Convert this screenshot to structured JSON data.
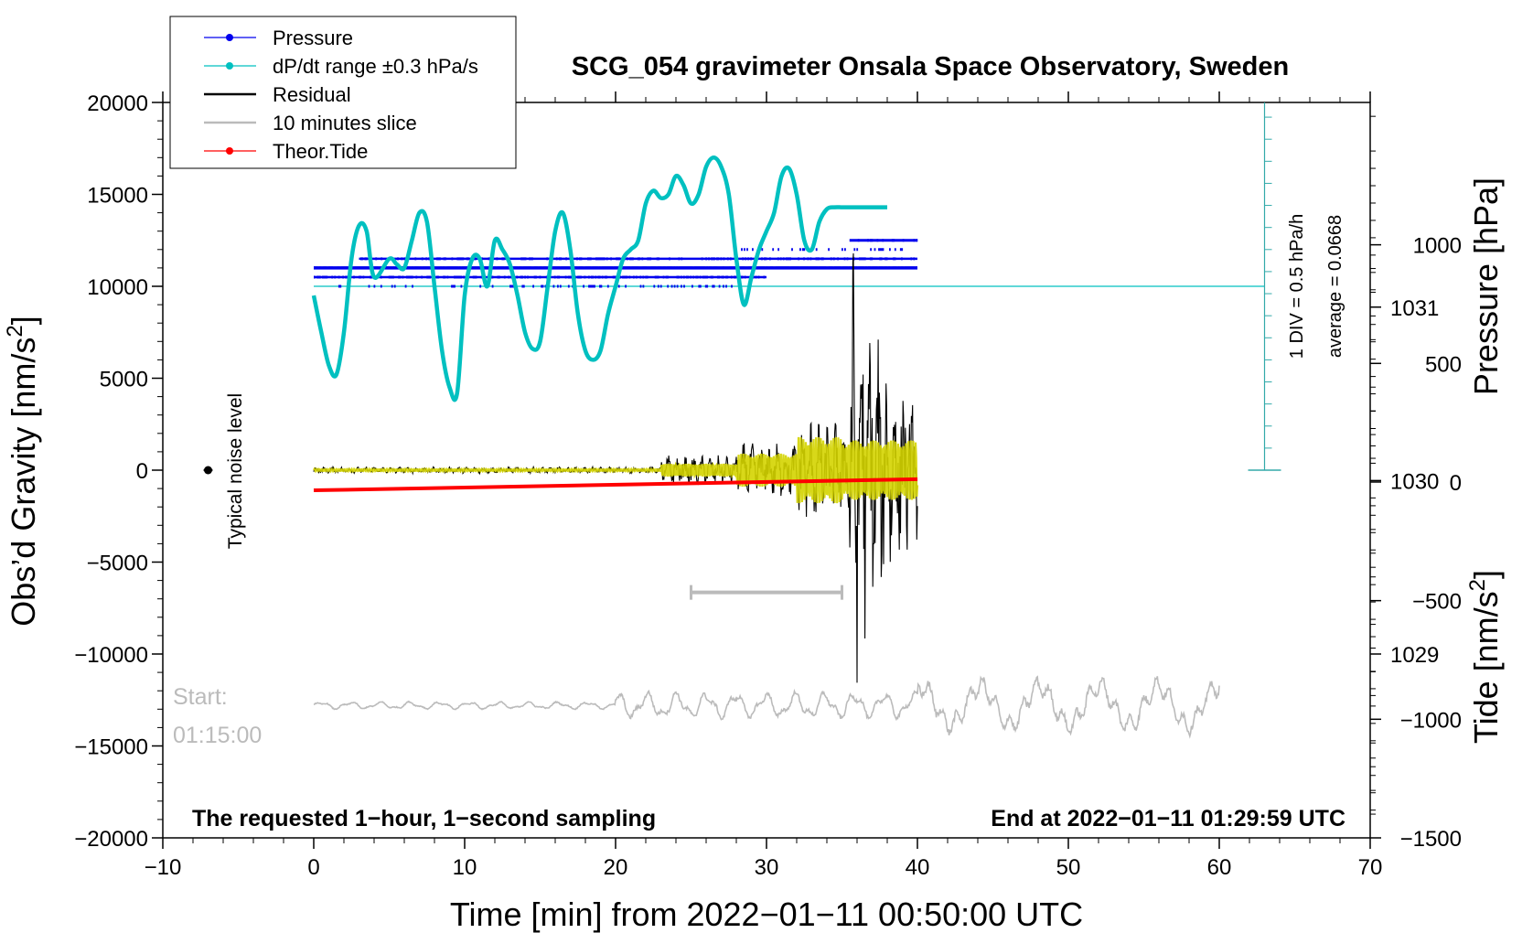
{
  "chart_data": {
    "type": "line",
    "title": "SCG_054 gravimeter Onsala Space Observatory, Sweden",
    "xlabel": "Time [min] from 2022−01−11 00:50:00 UTC",
    "ylabel_left_main": "Obs’d Gravity [nm/s",
    "ylabel_left_sup": "2",
    "ylabel_left_close": "]",
    "ylabel_right_pressure": "Pressure [hPa]",
    "ylabel_right_tide_main": "Tide [nm/s",
    "ylabel_right_tide_sup": "2",
    "ylabel_right_tide_close": "]",
    "xlim": [
      -10,
      70
    ],
    "ylim": [
      -20000,
      20000
    ],
    "pressure_lim": [
      1027.94,
      1032.18
    ],
    "tide_lim": [
      -1500,
      1600
    ],
    "x_ticks": [
      {
        "v": -10,
        "label": "−10"
      },
      {
        "v": 0,
        "label": "0"
      },
      {
        "v": 10,
        "label": "10"
      },
      {
        "v": 20,
        "label": "20"
      },
      {
        "v": 30,
        "label": "30"
      },
      {
        "v": 40,
        "label": "40"
      },
      {
        "v": 50,
        "label": "50"
      },
      {
        "v": 60,
        "label": "60"
      },
      {
        "v": 70,
        "label": "70"
      }
    ],
    "y_ticks": [
      {
        "v": 20000,
        "label": "20000"
      },
      {
        "v": 15000,
        "label": "15000"
      },
      {
        "v": 10000,
        "label": "10000"
      },
      {
        "v": 5000,
        "label": "5000"
      },
      {
        "v": 0,
        "label": "0"
      },
      {
        "v": -5000,
        "label": "−5000"
      },
      {
        "v": -10000,
        "label": "−10000"
      },
      {
        "v": -15000,
        "label": "−15000"
      },
      {
        "v": -20000,
        "label": "−20000"
      }
    ],
    "pressure_ticks": [
      {
        "v": 1031,
        "label": "1031"
      },
      {
        "v": 1030,
        "label": "1030"
      },
      {
        "v": 1029,
        "label": "1029"
      }
    ],
    "tide_ticks": [
      {
        "v": 1000,
        "label": "1000"
      },
      {
        "v": 500,
        "label": "500"
      },
      {
        "v": 0,
        "label": "0"
      },
      {
        "v": -500,
        "label": "−500"
      },
      {
        "v": -1000,
        "label": "−1000"
      },
      {
        "v": -1500,
        "label": "−1500"
      }
    ],
    "legend": [
      {
        "label": "Pressure",
        "color": "#0000ee",
        "marker": true
      },
      {
        "label": "dP/dt range ±0.3 hPa/s",
        "color": "#00c0c0",
        "marker": true
      },
      {
        "label": "Residual",
        "color": "#000000",
        "marker": false
      },
      {
        "label": "10 minutes slice",
        "color": "#bbbbbb",
        "marker": false
      },
      {
        "label": "Theor.Tide",
        "color": "#ff0000",
        "marker": true
      }
    ],
    "colors": {
      "pressure": "#0000ee",
      "dpdt": "#00c0c0",
      "residual": "#000000",
      "residual_filtered": "#d4d400",
      "slice": "#bbbbbb",
      "tide": "#ff0000",
      "scale_bar": "#33aaaa"
    },
    "dpdt_curve": {
      "x": [
        0,
        0.5,
        1,
        1.5,
        2,
        2.5,
        3,
        3.5,
        4,
        5,
        5.5,
        6,
        6.5,
        7,
        7.5,
        8,
        8.5,
        9,
        9.5,
        10,
        10.5,
        11,
        11.5,
        12,
        12.5,
        13,
        13.5,
        14,
        14.5,
        15,
        15.5,
        16,
        16.5,
        17,
        17.5,
        18,
        18.5,
        19,
        19.5,
        20,
        20.5,
        21,
        21.5,
        22,
        22.5,
        23,
        23.5,
        24,
        24.5,
        25,
        25.5,
        26,
        26.5,
        27,
        27.5,
        28,
        28.5,
        29,
        29.5,
        30,
        30.5,
        31,
        31.5,
        32,
        32.5,
        33,
        33.5,
        34,
        34.5,
        35,
        35.5,
        36,
        36.5,
        37,
        37.5,
        38
      ],
      "y": [
        9500,
        7500,
        5700,
        5200,
        7500,
        11500,
        13300,
        13000,
        10500,
        11500,
        11200,
        11000,
        12500,
        14000,
        13500,
        10000,
        6500,
        4500,
        4200,
        9500,
        11500,
        11500,
        10000,
        12500,
        12000,
        11200,
        9500,
        7500,
        6600,
        7000,
        10000,
        13000,
        14000,
        12000,
        8500,
        6500,
        6000,
        6500,
        8500,
        10000,
        11500,
        12000,
        12500,
        14500,
        15200,
        14800,
        15000,
        16000,
        15500,
        14500,
        15000,
        16500,
        17000,
        16500,
        15000,
        11500,
        9000,
        10500,
        12000,
        13000,
        14000,
        16000,
        16400,
        15000,
        12500,
        12000,
        13500,
        14200,
        14300,
        14300,
        14300,
        14300,
        14300,
        14300,
        14300,
        14300
      ]
    },
    "tide_curve": {
      "x": [
        0,
        40
      ],
      "y": [
        -35,
        12
      ]
    },
    "slice_bar": {
      "x_start": 25,
      "x_end": 35,
      "y": -6650
    },
    "noise_level": {
      "x": -7,
      "y": 0
    },
    "scale_bar_label": "1 DIV = 0.5 hPa/h",
    "average_label": "average = 0.0668",
    "noise_label": "Typical noise level",
    "start_label": "Start:",
    "start_time": "01:15:00",
    "footer_left": "The requested 1−hour, 1−second sampling",
    "footer_right": "End at 2022−01−11 01:29:59 UTC"
  }
}
